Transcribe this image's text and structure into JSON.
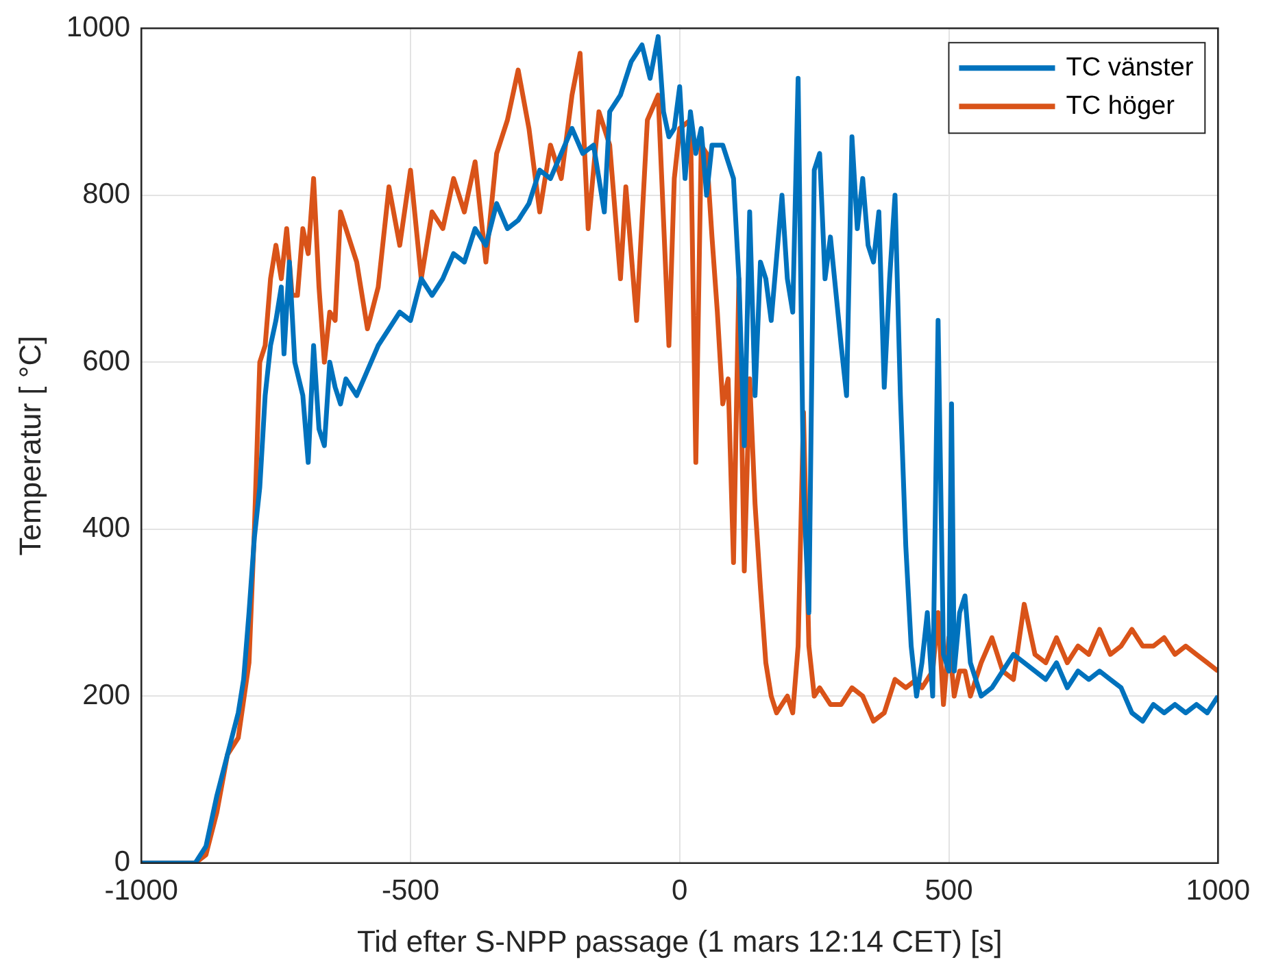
{
  "chart_data": {
    "type": "line",
    "xlabel": "Tid efter S-NPP passage (1 mars 12:14 CET) [s]",
    "ylabel": "Temperatur [ °C]",
    "xlim": [
      -1000,
      1000
    ],
    "xticks": [
      -1000,
      -500,
      0,
      500,
      1000
    ],
    "ylim": [
      0,
      1000
    ],
    "yticks": [
      0,
      200,
      400,
      600,
      800,
      1000
    ],
    "grid": true,
    "legend": "top right",
    "line_style": "solid",
    "marker": "none",
    "series": [
      {
        "name": "TC vänster",
        "color": "#0072bd",
        "x": [
          -1000,
          -900,
          -880,
          -860,
          -840,
          -820,
          -810,
          -800,
          -790,
          -780,
          -770,
          -760,
          -750,
          -740,
          -735,
          -725,
          -715,
          -700,
          -690,
          -680,
          -670,
          -660,
          -650,
          -640,
          -630,
          -620,
          -600,
          -580,
          -560,
          -540,
          -520,
          -500,
          -480,
          -460,
          -440,
          -420,
          -400,
          -380,
          -360,
          -340,
          -320,
          -300,
          -280,
          -260,
          -240,
          -220,
          -200,
          -180,
          -160,
          -140,
          -130,
          -110,
          -90,
          -70,
          -55,
          -40,
          -30,
          -20,
          -10,
          0,
          10,
          20,
          30,
          40,
          50,
          60,
          80,
          100,
          110,
          120,
          130,
          140,
          150,
          160,
          170,
          190,
          200,
          210,
          220,
          230,
          240,
          250,
          260,
          270,
          280,
          300,
          310,
          320,
          330,
          340,
          350,
          360,
          370,
          380,
          390,
          400,
          410,
          420,
          430,
          440,
          450,
          460,
          470,
          480,
          490,
          500,
          505,
          510,
          520,
          530,
          540,
          560,
          580,
          600,
          620,
          640,
          660,
          680,
          700,
          720,
          740,
          760,
          780,
          800,
          820,
          840,
          860,
          880,
          900,
          920,
          940,
          960,
          980,
          1000
        ],
        "values": [
          0,
          0,
          20,
          80,
          130,
          180,
          220,
          300,
          390,
          450,
          560,
          620,
          650,
          690,
          610,
          720,
          600,
          560,
          480,
          620,
          520,
          500,
          600,
          570,
          550,
          580,
          560,
          590,
          620,
          640,
          660,
          650,
          700,
          680,
          700,
          730,
          720,
          760,
          740,
          790,
          760,
          770,
          790,
          830,
          820,
          850,
          880,
          850,
          860,
          780,
          900,
          920,
          960,
          980,
          940,
          990,
          900,
          870,
          880,
          930,
          820,
          900,
          850,
          880,
          800,
          860,
          860,
          820,
          700,
          500,
          780,
          560,
          720,
          700,
          650,
          800,
          700,
          660,
          940,
          450,
          300,
          830,
          850,
          700,
          750,
          620,
          560,
          870,
          760,
          820,
          740,
          720,
          780,
          570,
          700,
          800,
          560,
          380,
          260,
          200,
          240,
          300,
          200,
          650,
          250,
          230,
          550,
          230,
          300,
          320,
          240,
          200,
          210,
          230,
          250,
          240,
          230,
          220,
          240,
          210,
          230,
          220,
          230,
          220,
          210,
          180,
          170,
          190,
          180,
          190,
          180,
          190,
          180,
          200
        ]
      },
      {
        "name": "TC höger",
        "color": "#d95319",
        "x": [
          -1000,
          -900,
          -880,
          -860,
          -840,
          -820,
          -800,
          -790,
          -780,
          -770,
          -760,
          -750,
          -740,
          -730,
          -720,
          -710,
          -700,
          -690,
          -680,
          -670,
          -660,
          -650,
          -640,
          -630,
          -620,
          -600,
          -580,
          -560,
          -540,
          -520,
          -500,
          -480,
          -460,
          -440,
          -420,
          -400,
          -380,
          -360,
          -340,
          -320,
          -300,
          -280,
          -260,
          -240,
          -220,
          -200,
          -185,
          -170,
          -150,
          -130,
          -110,
          -100,
          -80,
          -60,
          -40,
          -20,
          -10,
          0,
          20,
          30,
          40,
          50,
          60,
          70,
          80,
          90,
          100,
          110,
          120,
          130,
          140,
          150,
          160,
          170,
          180,
          190,
          200,
          210,
          220,
          230,
          240,
          250,
          260,
          280,
          300,
          320,
          340,
          360,
          380,
          400,
          420,
          440,
          450,
          470,
          480,
          490,
          500,
          510,
          520,
          530,
          540,
          560,
          580,
          600,
          620,
          640,
          660,
          680,
          700,
          720,
          740,
          760,
          780,
          800,
          820,
          840,
          860,
          880,
          900,
          920,
          940,
          960,
          980,
          1000
        ],
        "values": [
          0,
          0,
          10,
          60,
          130,
          150,
          240,
          400,
          600,
          620,
          700,
          740,
          700,
          760,
          680,
          680,
          760,
          730,
          820,
          690,
          600,
          660,
          650,
          780,
          760,
          720,
          640,
          690,
          810,
          740,
          830,
          700,
          780,
          760,
          820,
          780,
          840,
          720,
          850,
          890,
          950,
          880,
          780,
          860,
          820,
          920,
          970,
          760,
          900,
          860,
          700,
          810,
          650,
          890,
          920,
          620,
          820,
          880,
          890,
          480,
          860,
          850,
          750,
          660,
          550,
          580,
          360,
          700,
          350,
          580,
          430,
          330,
          240,
          200,
          180,
          190,
          200,
          180,
          260,
          540,
          260,
          200,
          210,
          190,
          190,
          210,
          200,
          170,
          180,
          220,
          210,
          220,
          210,
          230,
          300,
          190,
          270,
          200,
          230,
          230,
          200,
          240,
          270,
          230,
          220,
          310,
          250,
          240,
          270,
          240,
          260,
          250,
          280,
          250,
          260,
          280,
          260,
          260,
          270,
          250,
          260,
          250,
          240,
          230
        ]
      }
    ]
  }
}
